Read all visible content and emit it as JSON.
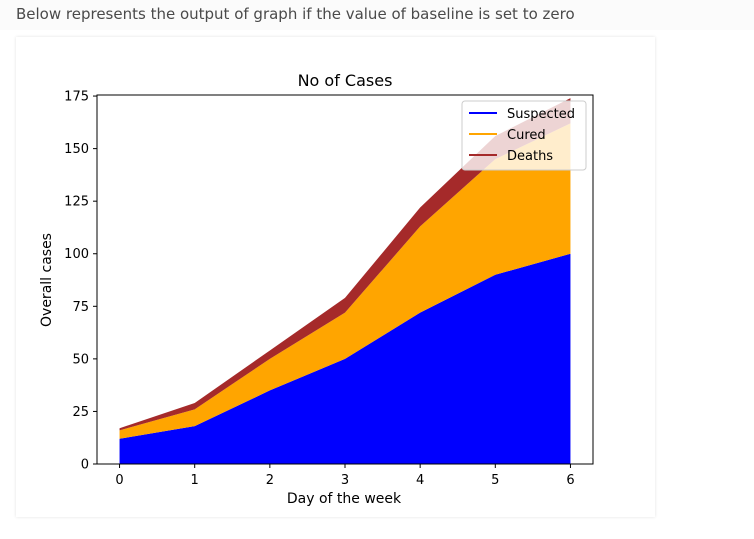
{
  "caption": "Below represents the output of graph if the value of baseline is set to zero",
  "chart_data": {
    "type": "area",
    "stacked": true,
    "baseline": "zero",
    "title": "No of Cases",
    "xlabel": "Day of the week",
    "ylabel": "Overall cases",
    "x": [
      0,
      1,
      2,
      3,
      4,
      5,
      6
    ],
    "xticks": [
      "0",
      "1",
      "2",
      "3",
      "4",
      "5",
      "6"
    ],
    "yticks": [
      "0",
      "25",
      "50",
      "75",
      "100",
      "125",
      "150",
      "175"
    ],
    "xlim": [
      -0.3,
      6.3
    ],
    "ylim": [
      0,
      175.5
    ],
    "series": [
      {
        "name": "Suspected",
        "color": "#0000ff",
        "values": [
          12,
          18,
          35,
          50,
          72,
          90,
          100
        ]
      },
      {
        "name": "Cured",
        "color": "#ffa500",
        "values": [
          4,
          8,
          15,
          22,
          41,
          55,
          62
        ]
      },
      {
        "name": "Deaths",
        "color": "#a52a2a",
        "values": [
          1,
          3,
          4,
          7,
          9,
          11,
          12
        ]
      }
    ],
    "legend_position": "upper right",
    "grid": false
  }
}
